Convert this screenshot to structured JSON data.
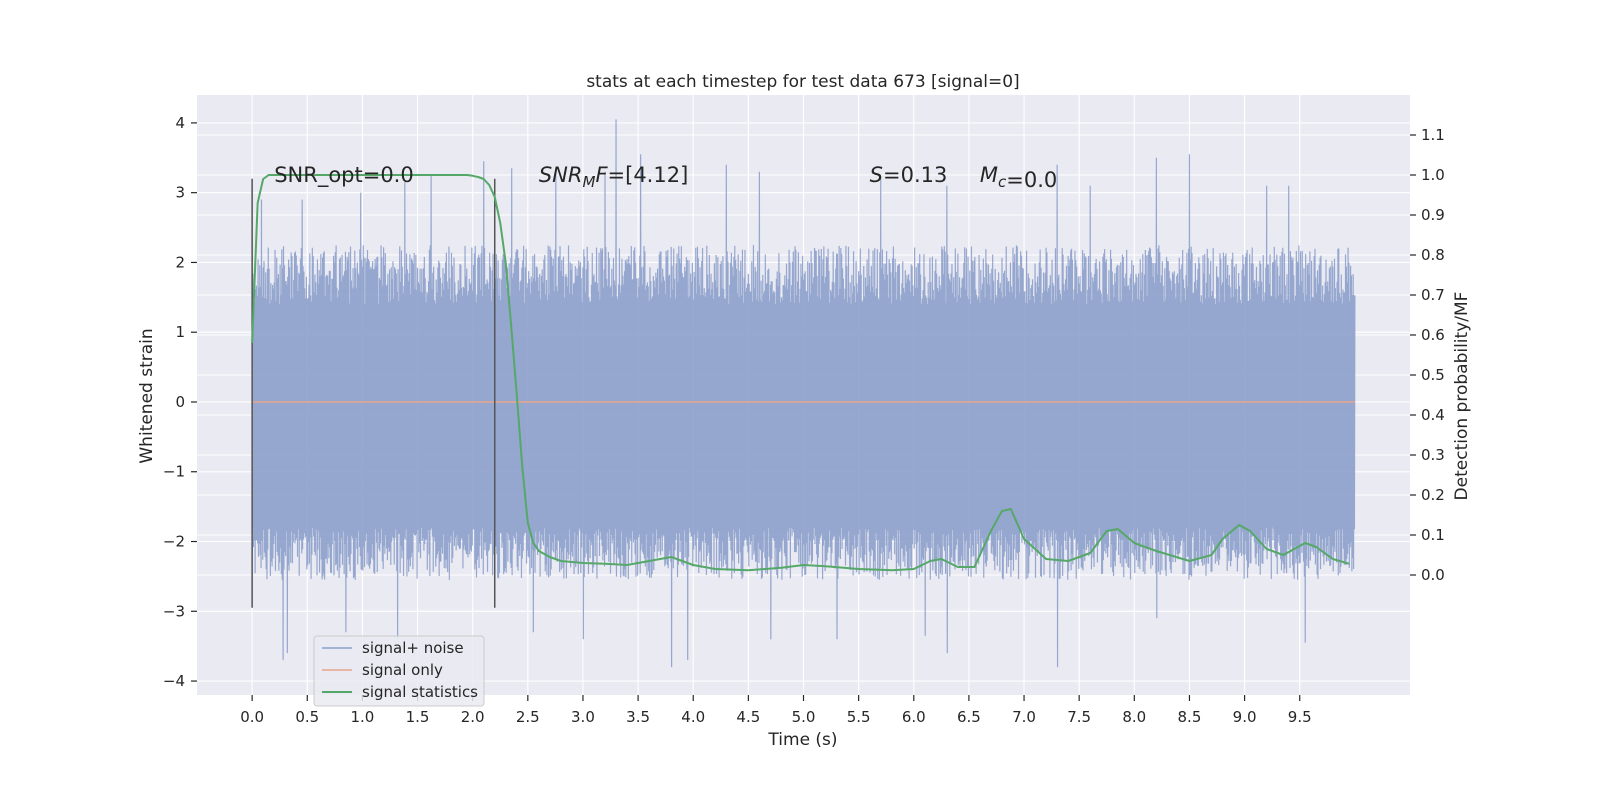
{
  "chart_data": {
    "type": "line",
    "title": "stats at each timestep for test data 673 [signal=0]",
    "xlabel": "Time (s)",
    "ylabel": "Whitened strain",
    "y2label": "Detection probability/MF",
    "xlim": [
      -0.5,
      10.5
    ],
    "ylim": [
      -4.2,
      4.4
    ],
    "y2lim": [
      -0.3,
      1.2
    ],
    "xticks": [
      0.0,
      0.5,
      1.0,
      1.5,
      2.0,
      2.5,
      3.0,
      3.5,
      4.0,
      4.5,
      5.0,
      5.5,
      6.0,
      6.5,
      7.0,
      7.5,
      8.0,
      8.5,
      9.0,
      9.5
    ],
    "xtick_labels": [
      "0.0",
      "0.5",
      "1.0",
      "1.5",
      "2.0",
      "2.5",
      "3.0",
      "3.5",
      "4.0",
      "4.5",
      "5.0",
      "5.5",
      "6.0",
      "6.5",
      "7.0",
      "7.5",
      "8.0",
      "8.5",
      "9.0",
      "9.5"
    ],
    "yticks": [
      4,
      3,
      2,
      1,
      0,
      -1,
      -2,
      -3,
      -4
    ],
    "ytick_labels": [
      "4",
      "3",
      "2",
      "1",
      "0",
      "−1",
      "−2",
      "−3",
      "−4"
    ],
    "y2ticks": [
      1.1,
      1.0,
      0.9,
      0.8,
      0.7,
      0.6,
      0.5,
      0.4,
      0.3,
      0.2,
      0.1,
      0.0
    ],
    "y2tick_labels": [
      "1.1",
      "1.0",
      "0.9",
      "0.8",
      "0.7",
      "0.6",
      "0.5",
      "0.4",
      "0.3",
      "0.2",
      "0.1",
      "0.0"
    ],
    "grid": true,
    "legend_placement": "lower-left",
    "annotations": [
      {
        "text": "SNR_opt=0.0",
        "x": 0.2,
        "y": 3.15
      },
      {
        "text": "SNR_MF=[4.12]",
        "x": 2.6,
        "y": 3.15
      },
      {
        "text": "S=0.13",
        "x": 5.6,
        "y": 3.15
      },
      {
        "text": "M_c=0.0",
        "x": 6.6,
        "y": 3.15
      }
    ],
    "vlines": [
      {
        "x": 0.0,
        "y_range": [
          -2.95,
          3.2
        ]
      },
      {
        "x": 2.2,
        "y_range": [
          -2.95,
          3.2
        ]
      }
    ],
    "series": [
      {
        "name": "signal+ noise",
        "axis": "left",
        "color": "#8da0cb",
        "envelope_typical": [
          -1.8,
          1.4
        ],
        "extreme_highs": [
          {
            "x": 0.08,
            "y": 2.9
          },
          {
            "x": 0.45,
            "y": 2.9
          },
          {
            "x": 0.98,
            "y": 3.0
          },
          {
            "x": 1.38,
            "y": 3.15
          },
          {
            "x": 1.62,
            "y": 3.25
          },
          {
            "x": 2.1,
            "y": 3.45
          },
          {
            "x": 2.35,
            "y": 3.35
          },
          {
            "x": 2.75,
            "y": 3.35
          },
          {
            "x": 3.2,
            "y": 3.3
          },
          {
            "x": 3.3,
            "y": 4.05
          },
          {
            "x": 3.52,
            "y": 3.55
          },
          {
            "x": 4.3,
            "y": 3.4
          },
          {
            "x": 4.6,
            "y": 3.3
          },
          {
            "x": 5.7,
            "y": 3.2
          },
          {
            "x": 6.3,
            "y": 3.1
          },
          {
            "x": 7.6,
            "y": 3.1
          },
          {
            "x": 7.3,
            "y": 3.4
          },
          {
            "x": 8.2,
            "y": 3.5
          },
          {
            "x": 8.5,
            "y": 3.55
          },
          {
            "x": 9.2,
            "y": 3.1
          },
          {
            "x": 9.4,
            "y": 3.1
          }
        ],
        "extreme_lows": [
          {
            "x": 0.28,
            "y": -3.7
          },
          {
            "x": 0.32,
            "y": -3.6
          },
          {
            "x": 0.85,
            "y": -3.3
          },
          {
            "x": 1.32,
            "y": -3.4
          },
          {
            "x": 2.55,
            "y": -3.3
          },
          {
            "x": 3.0,
            "y": -3.4
          },
          {
            "x": 3.8,
            "y": -3.8
          },
          {
            "x": 3.95,
            "y": -3.7
          },
          {
            "x": 4.7,
            "y": -3.4
          },
          {
            "x": 5.3,
            "y": -3.4
          },
          {
            "x": 6.1,
            "y": -3.35
          },
          {
            "x": 6.3,
            "y": -3.6
          },
          {
            "x": 7.3,
            "y": -3.8
          },
          {
            "x": 8.2,
            "y": -3.1
          },
          {
            "x": 9.55,
            "y": -3.45
          }
        ]
      },
      {
        "name": "signal only",
        "axis": "left",
        "color": "#e8a58c",
        "x": [
          0.0,
          10.0
        ],
        "y": [
          0.0,
          0.0
        ]
      },
      {
        "name": "signal statistics",
        "axis": "right",
        "color": "#55a868",
        "x": [
          0.0,
          0.05,
          0.1,
          0.15,
          0.25,
          0.5,
          1.0,
          1.5,
          1.8,
          1.95,
          2.0,
          2.05,
          2.1,
          2.15,
          2.2,
          2.25,
          2.3,
          2.35,
          2.4,
          2.45,
          2.5,
          2.55,
          2.6,
          2.7,
          2.8,
          3.0,
          3.2,
          3.4,
          3.6,
          3.8,
          4.0,
          4.2,
          4.5,
          4.8,
          5.0,
          5.2,
          5.5,
          5.8,
          6.0,
          6.15,
          6.25,
          6.4,
          6.55,
          6.7,
          6.8,
          6.88,
          7.0,
          7.2,
          7.4,
          7.6,
          7.75,
          7.85,
          8.0,
          8.2,
          8.5,
          8.7,
          8.8,
          8.95,
          9.05,
          9.2,
          9.35,
          9.45,
          9.55,
          9.65,
          9.8,
          9.95
        ],
        "y": [
          0.58,
          0.93,
          0.99,
          1.0,
          1.0,
          1.0,
          1.0,
          1.0,
          1.0,
          1.0,
          0.998,
          0.995,
          0.99,
          0.975,
          0.945,
          0.88,
          0.78,
          0.62,
          0.45,
          0.27,
          0.13,
          0.08,
          0.06,
          0.045,
          0.035,
          0.03,
          0.028,
          0.025,
          0.035,
          0.045,
          0.025,
          0.015,
          0.012,
          0.018,
          0.025,
          0.022,
          0.015,
          0.012,
          0.015,
          0.035,
          0.04,
          0.02,
          0.02,
          0.11,
          0.16,
          0.165,
          0.09,
          0.04,
          0.035,
          0.055,
          0.11,
          0.115,
          0.08,
          0.06,
          0.035,
          0.05,
          0.09,
          0.125,
          0.11,
          0.065,
          0.05,
          0.065,
          0.08,
          0.07,
          0.04,
          0.028
        ]
      }
    ]
  }
}
